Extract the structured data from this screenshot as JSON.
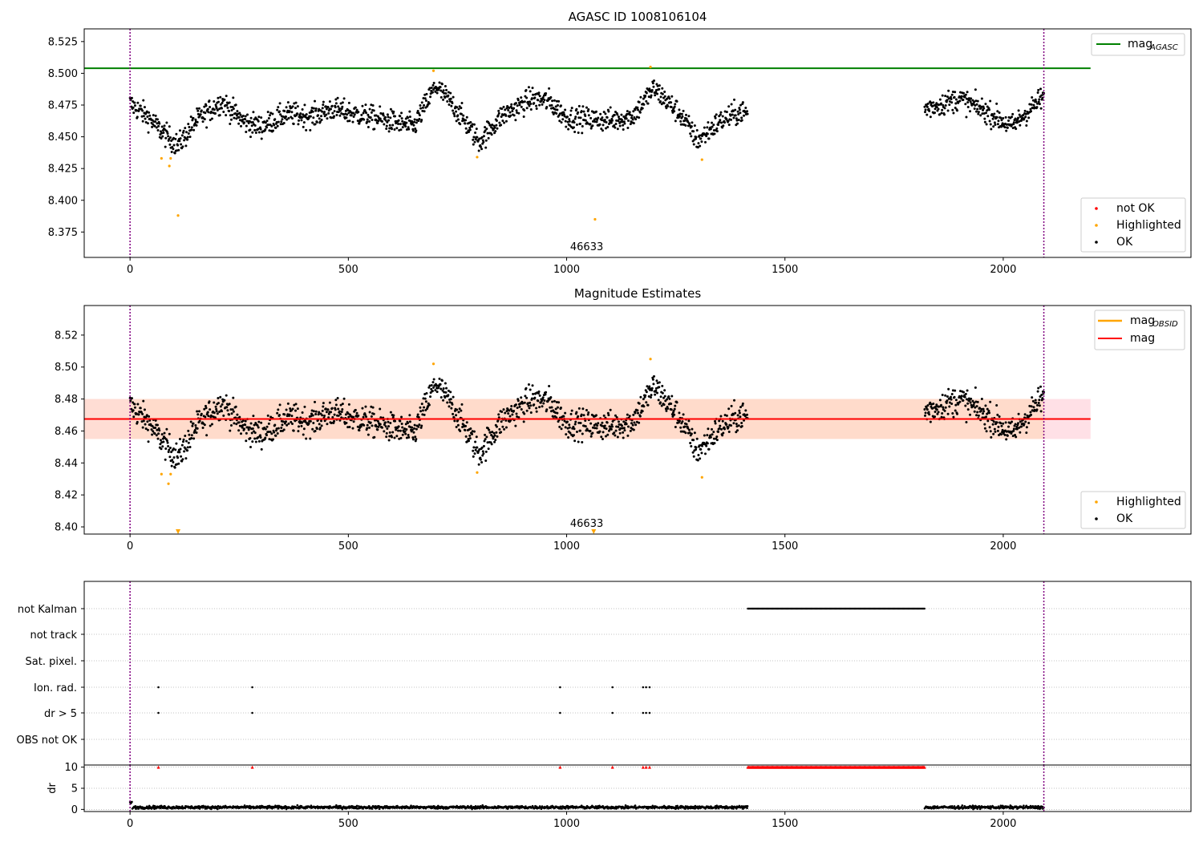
{
  "colors": {
    "ok": "#000000",
    "highlighted": "#ffa500",
    "not_ok": "#ff0000",
    "mag_agasc": "#008000",
    "mag_obsid": "#ffa500",
    "mag": "#ff0000",
    "band_inner": "#ffdac8",
    "band_outer": "#ffe0e6",
    "obsid_line": "#800080",
    "grid": "#b0b0b0"
  },
  "chart_data": [
    {
      "id": "agasc",
      "type": "scatter",
      "title": "AGASC ID 1008106104",
      "xlim": [
        -105,
        2430
      ],
      "ylim": [
        8.355,
        8.535
      ],
      "xticks": [
        0,
        500,
        1000,
        1500,
        2000
      ],
      "yticks": [
        8.375,
        8.4,
        8.425,
        8.45,
        8.475,
        8.5,
        8.525
      ],
      "ytick_decimals": 3,
      "mag_agasc": 8.504,
      "mag_agasc_xrange": [
        -105,
        2200
      ],
      "obsid_boundaries": [
        0,
        2093
      ],
      "obsid_label": {
        "text": "46633",
        "x": 1046
      },
      "segments": [
        [
          0,
          1415
        ],
        [
          1820,
          2093
        ]
      ],
      "highlighted_points": [
        [
          72,
          8.433
        ],
        [
          90,
          8.427
        ],
        [
          93,
          8.433
        ],
        [
          110,
          8.388
        ],
        [
          695,
          8.502
        ],
        [
          795,
          8.434
        ],
        [
          1065,
          8.385
        ],
        [
          1192,
          8.505
        ],
        [
          1310,
          8.432
        ]
      ],
      "legend_lines": [
        {
          "label": "mag",
          "sub": "AGASC",
          "color_key": "mag_agasc"
        }
      ],
      "legend_markers": [
        {
          "label": "not OK",
          "color_key": "not_ok"
        },
        {
          "label": "Highlighted",
          "color_key": "highlighted"
        },
        {
          "label": "OK",
          "color_key": "ok"
        }
      ]
    },
    {
      "id": "estimates",
      "type": "scatter",
      "title": "Magnitude Estimates",
      "xlim": [
        -105,
        2430
      ],
      "ylim": [
        8.3955,
        8.5385
      ],
      "xticks": [
        0,
        500,
        1000,
        1500,
        2000
      ],
      "yticks": [
        8.4,
        8.42,
        8.44,
        8.46,
        8.48,
        8.5,
        8.52
      ],
      "ytick_decimals": 2,
      "mag": 8.4675,
      "mag_band": [
        8.455,
        8.48
      ],
      "mag_obsid": 8.4675,
      "mag_obsid_band": [
        8.455,
        8.48
      ],
      "line_xrange": [
        -105,
        2200
      ],
      "obsid_boundaries": [
        0,
        2093
      ],
      "obsid_label": {
        "text": "46633",
        "x": 1046
      },
      "segments": [
        [
          0,
          1415
        ],
        [
          1820,
          2093
        ]
      ],
      "highlighted_points": [
        [
          72,
          8.433
        ],
        [
          88,
          8.427
        ],
        [
          93,
          8.433
        ],
        [
          795,
          8.434
        ],
        [
          695,
          8.502
        ],
        [
          1192,
          8.505
        ],
        [
          1310,
          8.431
        ]
      ],
      "below_range_markers": [
        110,
        1062
      ],
      "legend_lines": [
        {
          "label": "mag",
          "sub": "OBSID",
          "color_key": "mag_obsid"
        },
        {
          "label": "mag",
          "sub": "",
          "color_key": "mag"
        }
      ],
      "legend_markers": [
        {
          "label": "Highlighted",
          "color_key": "highlighted"
        },
        {
          "label": "OK",
          "color_key": "ok"
        }
      ]
    },
    {
      "id": "flags",
      "type": "scatter",
      "xlim": [
        -105,
        2430
      ],
      "xticks": [
        0,
        500,
        1000,
        1500,
        2000
      ],
      "categories": [
        "not Kalman",
        "not track",
        "Sat. pixel.",
        "Ion. rad.",
        "dr > 5",
        "OBS not OK"
      ],
      "flag_points": {
        "not Kalman": {
          "range": [
            1415,
            1820
          ]
        },
        "Ion. rad.": {
          "x": [
            65,
            280,
            985,
            1105,
            1175,
            1182,
            1190
          ]
        },
        "dr > 5": {
          "x": [
            65,
            280,
            985,
            1105,
            1175,
            1182,
            1190
          ]
        }
      },
      "obsid_boundaries": [
        0,
        2093
      ]
    },
    {
      "id": "dr",
      "type": "scatter",
      "ylabel": "dr",
      "xlim": [
        -105,
        2430
      ],
      "ylim": [
        -0.5,
        10.5
      ],
      "xticks": [
        0,
        500,
        1000,
        1500,
        2000
      ],
      "yticks": [
        0,
        5,
        10
      ],
      "red_triangles_x": [
        65,
        280,
        985,
        1105,
        1175,
        1182,
        1190
      ],
      "red_triangles_range": [
        1415,
        1820
      ],
      "segments": [
        [
          0,
          1415
        ],
        [
          1820,
          2093
        ]
      ],
      "obsid_boundaries": [
        0,
        2093
      ]
    }
  ]
}
